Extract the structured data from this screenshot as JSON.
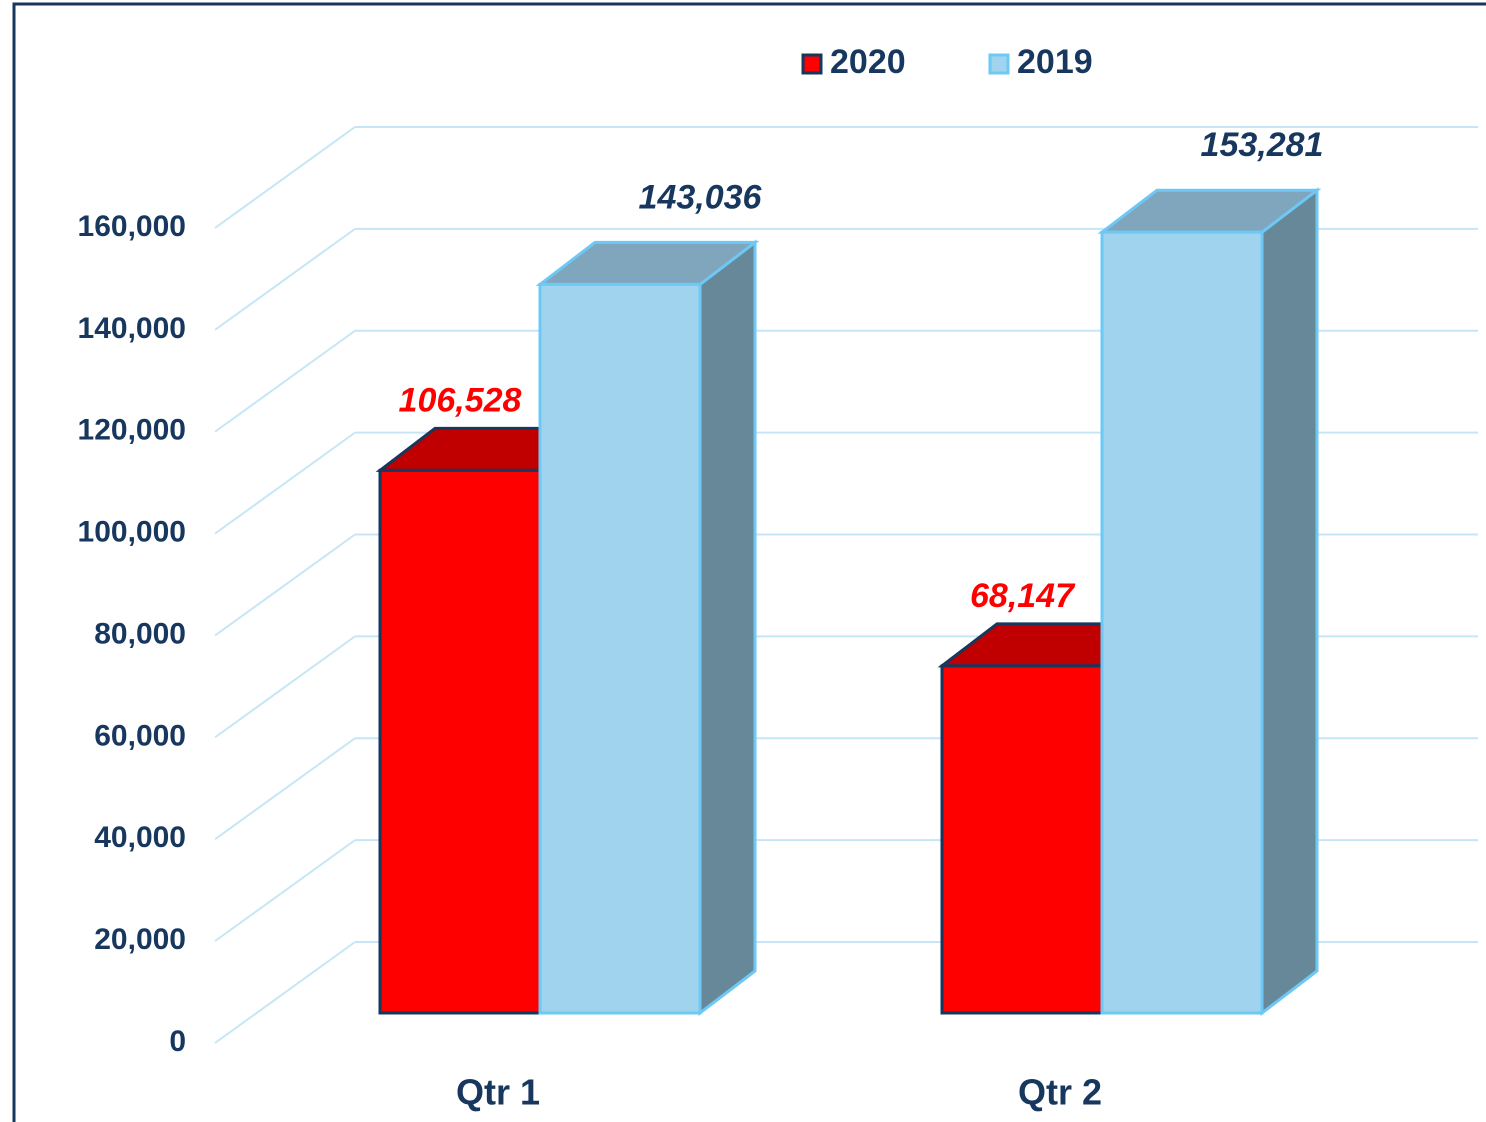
{
  "chart_data": {
    "type": "bar3d",
    "categories": [
      "Qtr 1",
      "Qtr 2"
    ],
    "series": [
      {
        "name": "2020",
        "color": "#ff0000",
        "values": [
          106528,
          68147
        ],
        "value_labels": [
          "106,528",
          "68,147"
        ]
      },
      {
        "name": "2019",
        "color": "#a0d4ee",
        "values": [
          143036,
          153281
        ],
        "value_labels": [
          "143,036",
          "153,281"
        ]
      }
    ],
    "ylim": [
      0,
      160000
    ],
    "yticks": [
      0,
      {
        "value": 20000,
        "label": "20,000"
      },
      {
        "value": 40000,
        "label": "40,000"
      },
      {
        "value": 60000,
        "label": "60,000"
      },
      {
        "value": 80000,
        "label": "80,000"
      },
      {
        "value": 100000,
        "label": "100,000"
      },
      {
        "value": 120000,
        "label": "120,000"
      },
      {
        "value": 140000,
        "label": "140,000"
      },
      {
        "value": 160000,
        "label": "160,000"
      }
    ],
    "grid": true,
    "legend": "top"
  }
}
